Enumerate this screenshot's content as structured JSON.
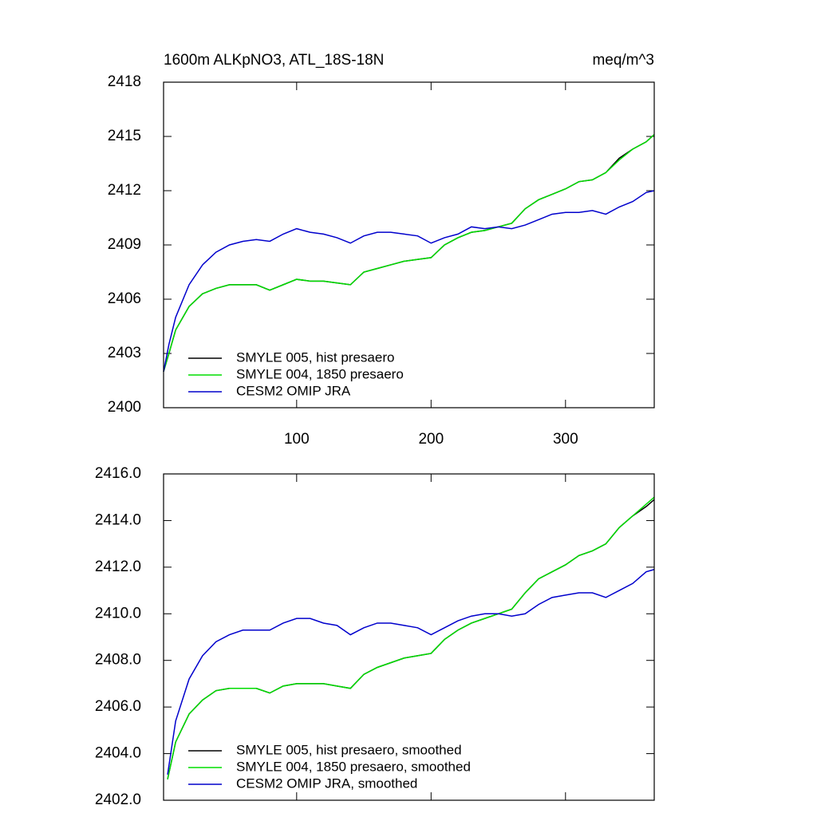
{
  "chart_data": [
    {
      "type": "line",
      "title": "1600m ALKpNO3, ATL_18S-18N",
      "right_title": "meq/m^3",
      "x": [
        1,
        5,
        10,
        20,
        30,
        40,
        50,
        60,
        70,
        80,
        90,
        100,
        110,
        120,
        130,
        140,
        150,
        160,
        170,
        180,
        190,
        200,
        210,
        220,
        230,
        240,
        250,
        260,
        270,
        280,
        290,
        300,
        310,
        320,
        330,
        340,
        350,
        360,
        366
      ],
      "xlim": [
        1,
        366
      ],
      "xticks": [
        100,
        200,
        300
      ],
      "show_xtick_labels": true,
      "ylim": [
        2400,
        2418
      ],
      "yticks": [
        2400,
        2403,
        2406,
        2409,
        2412,
        2415,
        2418
      ],
      "series": [
        {
          "name": "SMYLE 005, hist presaero",
          "color": "#000000",
          "values": [
            2402.0,
            2403.0,
            2404.3,
            2405.6,
            2406.3,
            2406.6,
            2406.8,
            2406.8,
            2406.8,
            2406.5,
            2406.8,
            2407.1,
            2407.0,
            2407.0,
            2406.9,
            2406.8,
            2407.5,
            2407.7,
            2407.9,
            2408.1,
            2408.2,
            2408.3,
            2409.0,
            2409.4,
            2409.7,
            2409.8,
            2410.0,
            2410.2,
            2411.0,
            2411.5,
            2411.8,
            2412.1,
            2412.5,
            2412.6,
            2413.0,
            2413.8,
            2414.3,
            2414.7,
            2415.1
          ]
        },
        {
          "name": "SMYLE 004, 1850 presaero",
          "color": "#00dd00",
          "values": [
            2402.0,
            2403.0,
            2404.3,
            2405.6,
            2406.3,
            2406.6,
            2406.8,
            2406.8,
            2406.8,
            2406.5,
            2406.8,
            2407.1,
            2407.0,
            2407.0,
            2406.9,
            2406.8,
            2407.5,
            2407.7,
            2407.9,
            2408.1,
            2408.2,
            2408.3,
            2409.0,
            2409.4,
            2409.7,
            2409.8,
            2410.0,
            2410.2,
            2411.0,
            2411.5,
            2411.8,
            2412.1,
            2412.5,
            2412.6,
            2413.0,
            2413.7,
            2414.3,
            2414.7,
            2415.1
          ]
        },
        {
          "name": "CESM2 OMIP JRA",
          "color": "#0000cc",
          "values": [
            2402.0,
            2403.5,
            2405.0,
            2406.8,
            2407.9,
            2408.6,
            2409.0,
            2409.2,
            2409.3,
            2409.2,
            2409.6,
            2409.9,
            2409.7,
            2409.6,
            2409.4,
            2409.1,
            2409.5,
            2409.7,
            2409.7,
            2409.6,
            2409.5,
            2409.1,
            2409.4,
            2409.6,
            2410.0,
            2409.9,
            2410.0,
            2409.9,
            2410.1,
            2410.4,
            2410.7,
            2410.8,
            2410.8,
            2410.9,
            2410.7,
            2411.1,
            2411.4,
            2411.9,
            2412.0
          ]
        }
      ]
    },
    {
      "type": "line",
      "x": [
        4,
        10,
        20,
        30,
        40,
        50,
        60,
        70,
        80,
        90,
        100,
        110,
        120,
        130,
        140,
        150,
        160,
        170,
        180,
        190,
        200,
        210,
        220,
        230,
        240,
        250,
        260,
        270,
        280,
        290,
        300,
        310,
        320,
        330,
        340,
        350,
        360,
        366
      ],
      "xlim": [
        1,
        366
      ],
      "xticks": [
        100,
        200,
        300
      ],
      "show_xtick_labels": false,
      "ylim": [
        2402,
        2416
      ],
      "yticks": [
        {
          "value": 2402,
          "label": "2402.0"
        },
        {
          "value": 2404,
          "label": "2404.0"
        },
        {
          "value": 2406,
          "label": "2406.0"
        },
        {
          "value": 2408,
          "label": "2408.0"
        },
        {
          "value": 2410,
          "label": "2410.0"
        },
        {
          "value": 2412,
          "label": "2412.0"
        },
        {
          "value": 2414,
          "label": "2414.0"
        },
        {
          "value": 2416,
          "label": "2416.0"
        }
      ],
      "series": [
        {
          "name": "SMYLE 005, hist presaero, smoothed",
          "color": "#000000",
          "values": [
            2402.9,
            2404.5,
            2405.7,
            2406.3,
            2406.7,
            2406.8,
            2406.8,
            2406.8,
            2406.6,
            2406.9,
            2407.0,
            2407.0,
            2407.0,
            2406.9,
            2406.8,
            2407.4,
            2407.7,
            2407.9,
            2408.1,
            2408.2,
            2408.3,
            2408.9,
            2409.3,
            2409.6,
            2409.8,
            2410.0,
            2410.2,
            2410.9,
            2411.5,
            2411.8,
            2412.1,
            2412.5,
            2412.7,
            2413.0,
            2413.7,
            2414.2,
            2414.6,
            2414.9
          ]
        },
        {
          "name": "SMYLE 004, 1850 presaero, smoothed",
          "color": "#00dd00",
          "values": [
            2402.9,
            2404.5,
            2405.7,
            2406.3,
            2406.7,
            2406.8,
            2406.8,
            2406.8,
            2406.6,
            2406.9,
            2407.0,
            2407.0,
            2407.0,
            2406.9,
            2406.8,
            2407.4,
            2407.7,
            2407.9,
            2408.1,
            2408.2,
            2408.3,
            2408.9,
            2409.3,
            2409.6,
            2409.8,
            2410.0,
            2410.2,
            2410.9,
            2411.5,
            2411.8,
            2412.1,
            2412.5,
            2412.7,
            2413.0,
            2413.7,
            2414.2,
            2414.7,
            2415.0
          ]
        },
        {
          "name": "CESM2 OMIP JRA, smoothed",
          "color": "#0000cc",
          "values": [
            2403.1,
            2405.4,
            2407.2,
            2408.2,
            2408.8,
            2409.1,
            2409.3,
            2409.3,
            2409.3,
            2409.6,
            2409.8,
            2409.8,
            2409.6,
            2409.5,
            2409.1,
            2409.4,
            2409.6,
            2409.6,
            2409.5,
            2409.4,
            2409.1,
            2409.4,
            2409.7,
            2409.9,
            2410.0,
            2410.0,
            2409.9,
            2410.0,
            2410.4,
            2410.7,
            2410.8,
            2410.9,
            2410.9,
            2410.7,
            2411.0,
            2411.3,
            2411.8,
            2411.9
          ]
        }
      ]
    }
  ]
}
